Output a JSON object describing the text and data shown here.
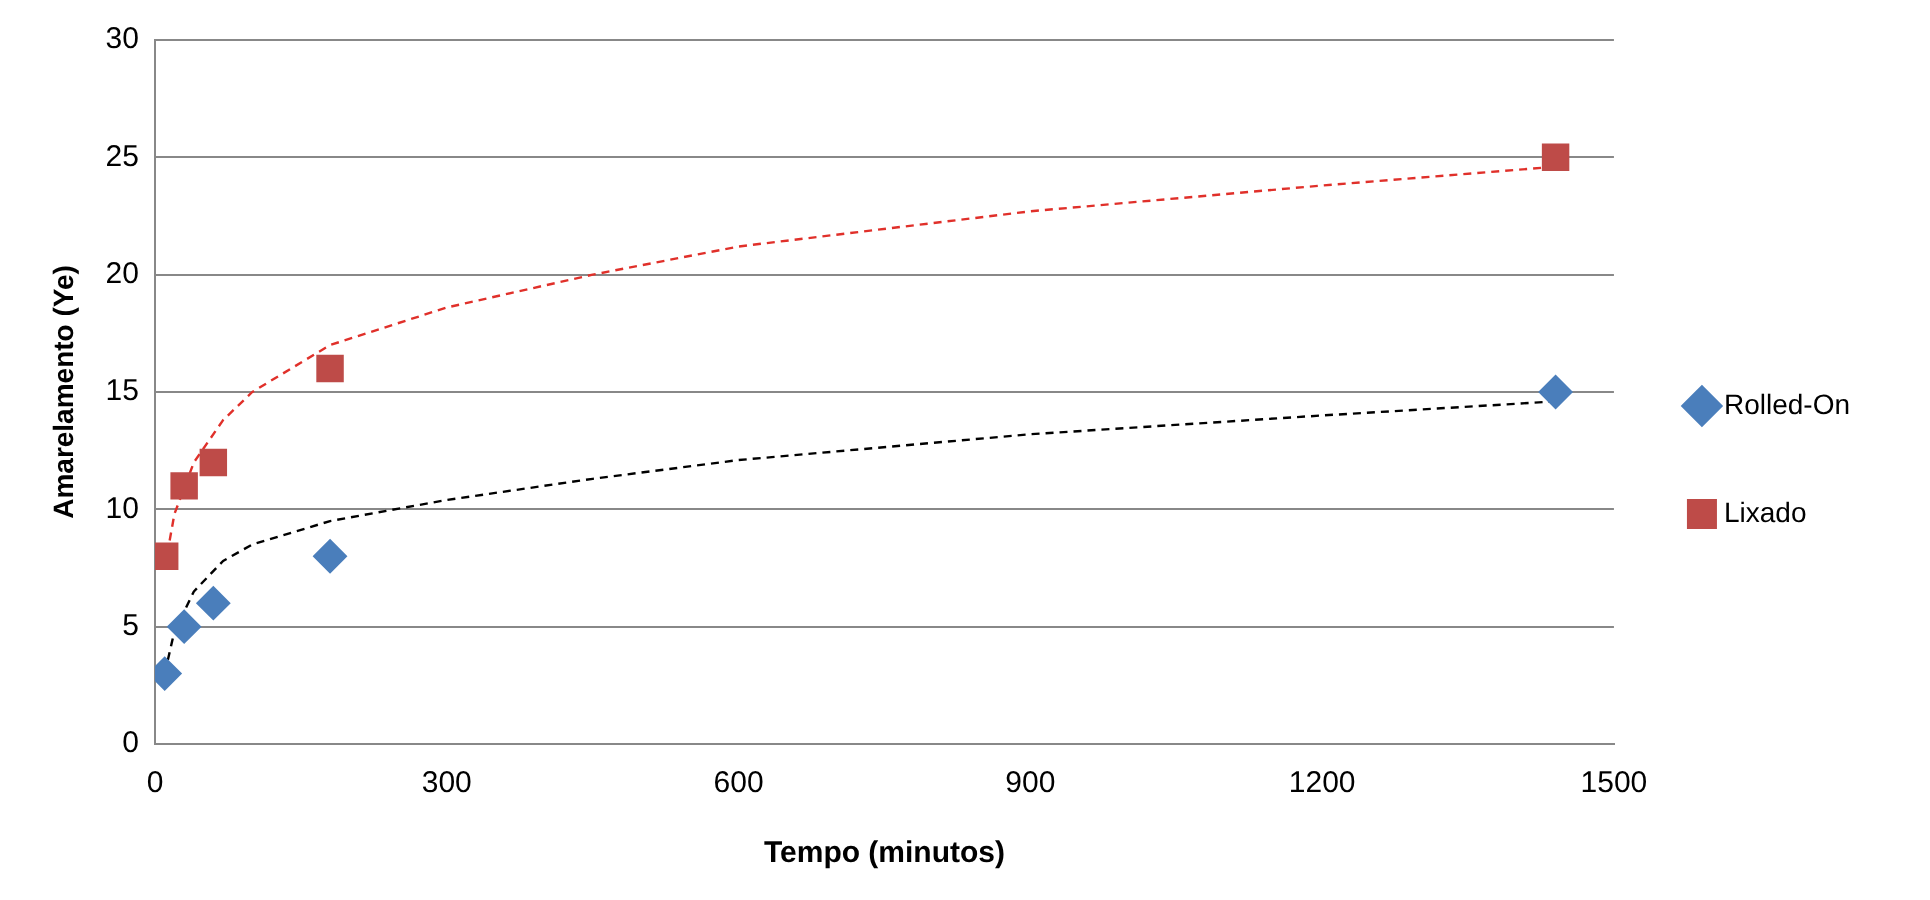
{
  "chart_data": {
    "type": "scatter",
    "xlabel": "Tempo (minutos)",
    "ylabel": "Amarelamento (Ye)",
    "xlim": [
      0,
      1500
    ],
    "xticks": [
      0,
      300,
      600,
      900,
      1200,
      1500
    ],
    "ylim": [
      0,
      30
    ],
    "yticks": [
      0,
      5,
      10,
      15,
      20,
      25,
      30
    ],
    "grid": "y",
    "legend": "right",
    "series": [
      {
        "type": "line",
        "color": "#000000",
        "marker": "none",
        "line_style": "dashed",
        "x": [
          10,
          20,
          40,
          70,
          100,
          180,
          300,
          450,
          600,
          900,
          1200,
          1440
        ],
        "values": [
          3,
          4.8,
          6.5,
          7.8,
          8.5,
          9.5,
          10.4,
          11.3,
          12.1,
          13.2,
          14,
          14.6
        ]
      },
      {
        "type": "line",
        "color": "#e0302a",
        "marker": "none",
        "line_style": "dashed",
        "x": [
          10,
          20,
          40,
          70,
          100,
          180,
          300,
          450,
          600,
          900,
          1200,
          1440
        ],
        "values": [
          7.5,
          9.8,
          12,
          13.8,
          15,
          17,
          18.6,
          20,
          21.2,
          22.7,
          23.8,
          24.6
        ]
      },
      {
        "name": "Rolled-On",
        "color": "#4a7ebb",
        "marker": "diamond",
        "x": [
          10,
          30,
          60,
          180,
          1440
        ],
        "values": [
          3,
          5,
          6,
          8,
          15
        ]
      },
      {
        "name": "Lixado",
        "color": "#be4b48",
        "marker": "square",
        "x": [
          10,
          30,
          60,
          180,
          1440
        ],
        "values": [
          8,
          11,
          12,
          16,
          25
        ]
      }
    ]
  }
}
